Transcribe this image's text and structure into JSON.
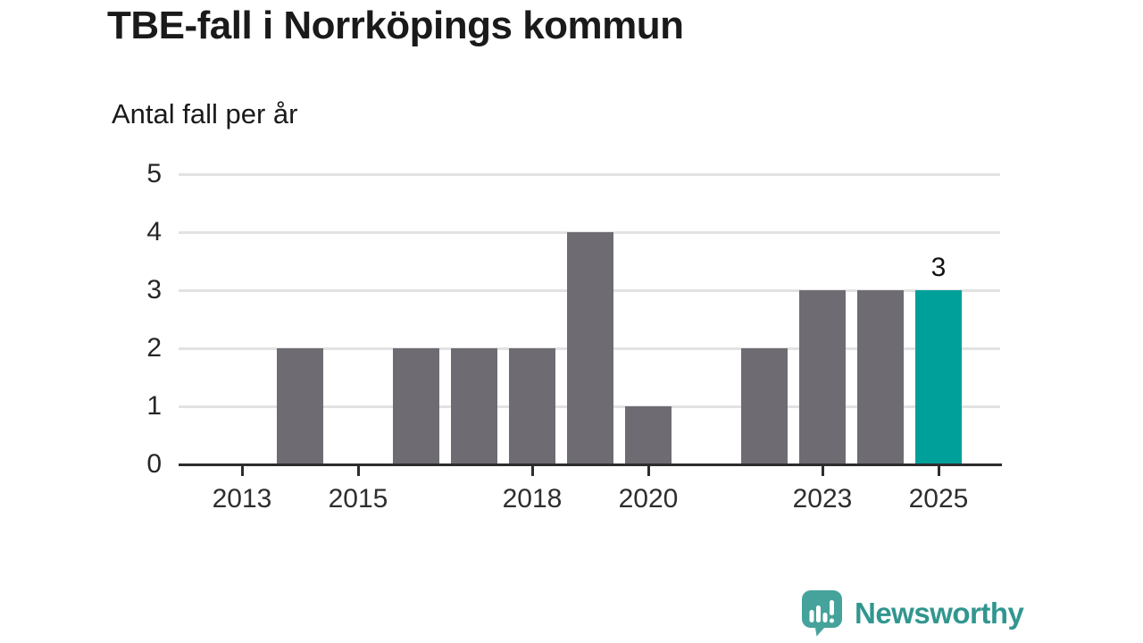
{
  "header": {
    "title": "TBE-fall i Norrköpings kommun",
    "subtitle": "Antal fall per år"
  },
  "chart_data": {
    "type": "bar",
    "title": "TBE-fall i Norrköpings kommun",
    "ylabel": "Antal fall per år",
    "xlabel": "",
    "x": [
      2013,
      2014,
      2015,
      2016,
      2017,
      2018,
      2019,
      2020,
      2021,
      2022,
      2023,
      2024,
      2025
    ],
    "values": [
      0,
      2,
      0,
      2,
      2,
      2,
      4,
      1,
      0,
      2,
      3,
      3,
      3
    ],
    "x_tick_labels": [
      "2013",
      "2015",
      "2018",
      "2020",
      "2023",
      "2025"
    ],
    "y_tick_labels": [
      "0",
      "1",
      "2",
      "3",
      "4",
      "5"
    ],
    "ylim": [
      0,
      5
    ],
    "grid": "horizontal",
    "legend": "none",
    "highlight_x": 2025,
    "annotation": {
      "x": 2025,
      "label": "3"
    },
    "colors": {
      "bar": "#6e6c72",
      "highlight_bar": "#00a09a",
      "gridline": "#e2e2e2",
      "axis": "#2d2d2d"
    }
  },
  "footer": {
    "logo_text": "Newsworthy",
    "logo_icon": "newsworthy-speech-bubble-chart-icon",
    "icon_color": "#46a39c",
    "text_color": "#31968f"
  }
}
